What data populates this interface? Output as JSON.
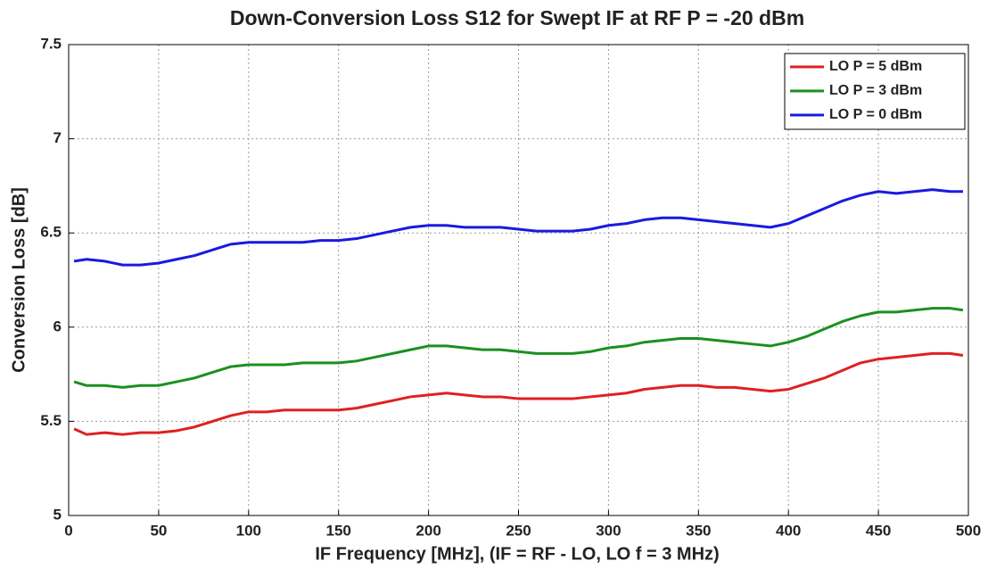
{
  "chart_data": {
    "type": "line",
    "title": "Down-Conversion Loss S12 for Swept IF at RF P = -20 dBm",
    "xlabel": "IF Frequency [MHz], (IF = RF - LO, LO f = 3 MHz)",
    "ylabel": "Conversion Loss [dB]",
    "x": [
      3,
      10,
      20,
      30,
      40,
      50,
      60,
      70,
      80,
      90,
      100,
      110,
      120,
      130,
      140,
      150,
      160,
      170,
      180,
      190,
      200,
      210,
      220,
      230,
      240,
      250,
      260,
      270,
      280,
      290,
      300,
      310,
      320,
      330,
      340,
      350,
      360,
      370,
      380,
      390,
      400,
      410,
      420,
      430,
      440,
      450,
      460,
      470,
      480,
      490,
      497
    ],
    "series": [
      {
        "name": "LO P = 5 dBm",
        "color": "#e02020",
        "values": [
          5.46,
          5.43,
          5.44,
          5.43,
          5.44,
          5.44,
          5.45,
          5.47,
          5.5,
          5.53,
          5.55,
          5.55,
          5.56,
          5.56,
          5.56,
          5.56,
          5.57,
          5.59,
          5.61,
          5.63,
          5.64,
          5.65,
          5.64,
          5.63,
          5.63,
          5.62,
          5.62,
          5.62,
          5.62,
          5.63,
          5.64,
          5.65,
          5.67,
          5.68,
          5.69,
          5.69,
          5.68,
          5.68,
          5.67,
          5.66,
          5.67,
          5.7,
          5.73,
          5.77,
          5.81,
          5.83,
          5.84,
          5.85,
          5.86,
          5.86,
          5.85
        ]
      },
      {
        "name": "LO P = 3 dBm",
        "color": "#1a9020",
        "values": [
          5.71,
          5.69,
          5.69,
          5.68,
          5.69,
          5.69,
          5.71,
          5.73,
          5.76,
          5.79,
          5.8,
          5.8,
          5.8,
          5.81,
          5.81,
          5.81,
          5.82,
          5.84,
          5.86,
          5.88,
          5.9,
          5.9,
          5.89,
          5.88,
          5.88,
          5.87,
          5.86,
          5.86,
          5.86,
          5.87,
          5.89,
          5.9,
          5.92,
          5.93,
          5.94,
          5.94,
          5.93,
          5.92,
          5.91,
          5.9,
          5.92,
          5.95,
          5.99,
          6.03,
          6.06,
          6.08,
          6.08,
          6.09,
          6.1,
          6.1,
          6.09
        ]
      },
      {
        "name": "LO P = 0 dBm",
        "color": "#1a1ae0",
        "values": [
          6.35,
          6.36,
          6.35,
          6.33,
          6.33,
          6.34,
          6.36,
          6.38,
          6.41,
          6.44,
          6.45,
          6.45,
          6.45,
          6.45,
          6.46,
          6.46,
          6.47,
          6.49,
          6.51,
          6.53,
          6.54,
          6.54,
          6.53,
          6.53,
          6.53,
          6.52,
          6.51,
          6.51,
          6.51,
          6.52,
          6.54,
          6.55,
          6.57,
          6.58,
          6.58,
          6.57,
          6.56,
          6.55,
          6.54,
          6.53,
          6.55,
          6.59,
          6.63,
          6.67,
          6.7,
          6.72,
          6.71,
          6.72,
          6.73,
          6.72,
          6.72
        ]
      }
    ],
    "xlim": [
      0,
      500
    ],
    "xticks": [
      0,
      50,
      100,
      150,
      200,
      250,
      300,
      350,
      400,
      450,
      500
    ],
    "ylim": [
      5,
      7.5
    ],
    "yticks": [
      5,
      5.5,
      6,
      6.5,
      7,
      7.5
    ],
    "grid": true,
    "legend": "upper right"
  }
}
